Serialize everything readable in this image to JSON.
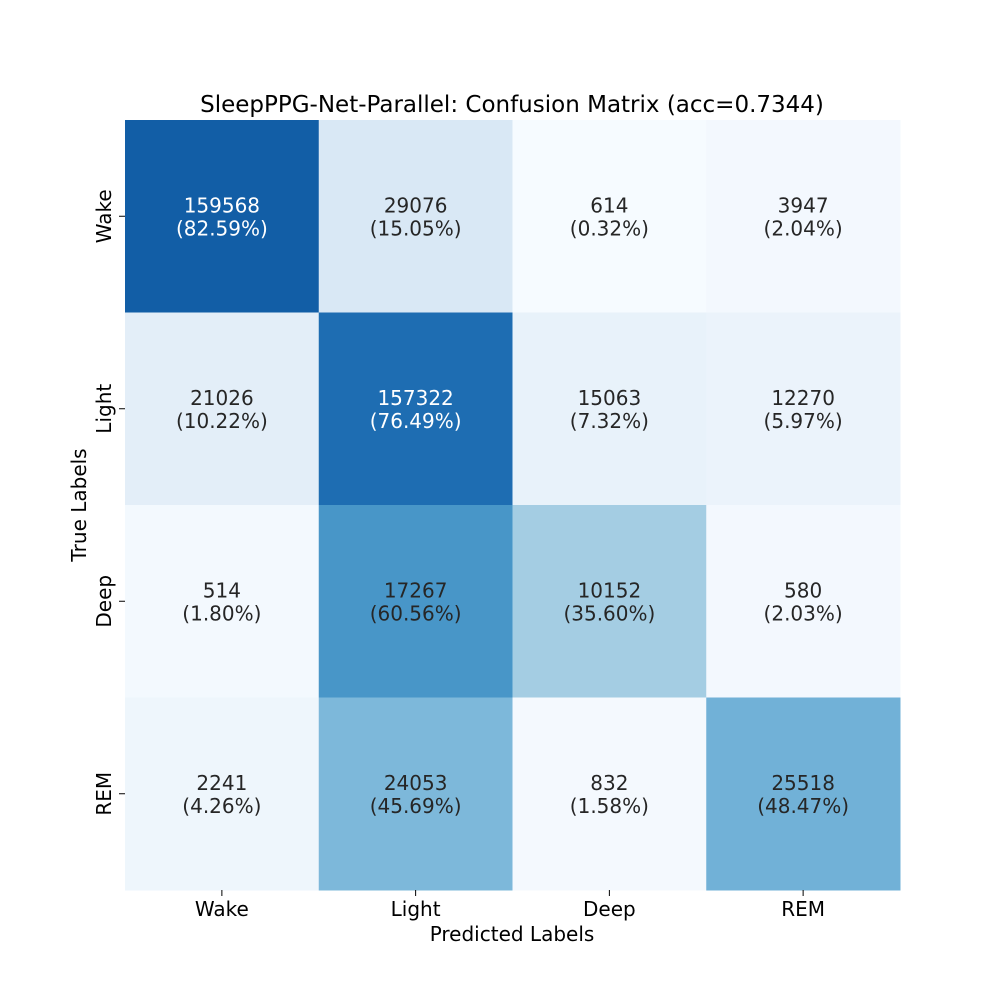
{
  "chart_data": {
    "type": "heatmap",
    "title": "SleepPPG-Net-Parallel: Confusion Matrix (acc=0.7344)",
    "xlabel": "Predicted Labels",
    "ylabel": "True Labels",
    "x_categories": [
      "Wake",
      "Light",
      "Deep",
      "REM"
    ],
    "y_categories": [
      "Wake",
      "Light",
      "Deep",
      "REM"
    ],
    "counts": [
      [
        159568,
        29076,
        614,
        3947
      ],
      [
        21026,
        157322,
        15063,
        12270
      ],
      [
        514,
        17267,
        10152,
        580
      ],
      [
        2241,
        24053,
        832,
        25518
      ]
    ],
    "percent_labels": [
      [
        "(82.59%)",
        "(15.05%)",
        "(0.32%)",
        "(2.04%)"
      ],
      [
        "(10.22%)",
        "(76.49%)",
        "(7.32%)",
        "(5.97%)"
      ],
      [
        "(1.80%)",
        "(60.56%)",
        "(35.60%)",
        "(2.03%)"
      ],
      [
        "(4.26%)",
        "(45.69%)",
        "(1.58%)",
        "(48.47%)"
      ]
    ],
    "percent_values": [
      [
        82.59,
        15.05,
        0.32,
        2.04
      ],
      [
        10.22,
        76.49,
        7.32,
        5.97
      ],
      [
        1.8,
        60.56,
        35.6,
        2.03
      ],
      [
        4.26,
        45.69,
        1.58,
        48.47
      ]
    ],
    "colormap": "Blues",
    "color_scale_range": [
      0,
      100
    ],
    "colorbar": false,
    "grid": false
  }
}
